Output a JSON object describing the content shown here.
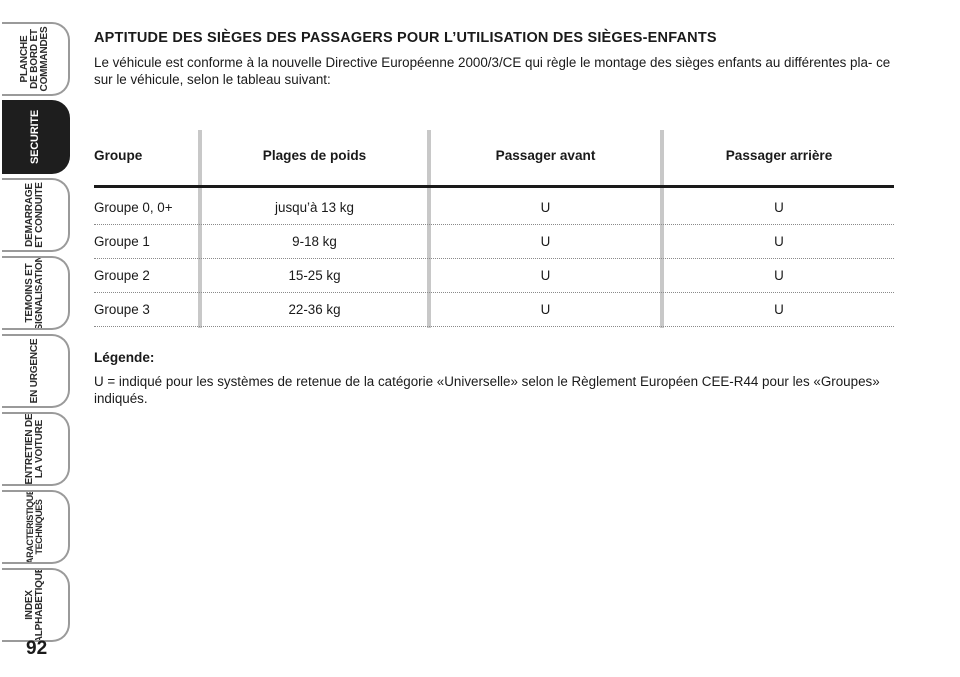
{
  "sidebar": {
    "tabs": [
      {
        "label": "PLANCHE\nDE BORD ET\nCOMMANDES",
        "active": false
      },
      {
        "label": "SECURITE",
        "active": true
      },
      {
        "label": "DEMARRAGE\nET CONDUITE",
        "active": false
      },
      {
        "label": "TEMOINS ET\nSIGNALISATION",
        "active": false
      },
      {
        "label": "EN URGENCE",
        "active": false
      },
      {
        "label": "ENTRETIEN DE\nLA VOITURE",
        "active": false
      },
      {
        "label": "CARACTERISTIQUES\nTECHNIQUES",
        "active": false
      },
      {
        "label": "INDEX\nALPHABETIQUE",
        "active": false
      }
    ]
  },
  "page_number": "92",
  "heading": "APTITUDE DES SIÈGES DES PASSAGERS POUR L’UTILISATION DES SIÈGES-ENFANTS",
  "intro": "Le véhicule est conforme à la nouvelle Directive Européenne 2000/3/CE qui règle le montage des sièges enfants au différentes pla- ce sur le véhicule, selon le tableau suivant:",
  "table": {
    "headers": [
      "Groupe",
      "Plages de poids",
      "Passager avant",
      "Passager arrière"
    ],
    "rows": [
      [
        "Groupe 0, 0+",
        "jusqu’à 13 kg",
        "U",
        "U"
      ],
      [
        "Groupe 1",
        "9-18 kg",
        "U",
        "U"
      ],
      [
        "Groupe 2",
        "15-25 kg",
        "U",
        "U"
      ],
      [
        "Groupe 3",
        "22-36 kg",
        "U",
        "U"
      ]
    ]
  },
  "legend": {
    "title": "Légende:",
    "text": "U = indiqué pour les systèmes de retenue de la catégorie «Universelle» selon le Règlement Européen CEE-R44 pour les «Groupes» indiqués."
  }
}
